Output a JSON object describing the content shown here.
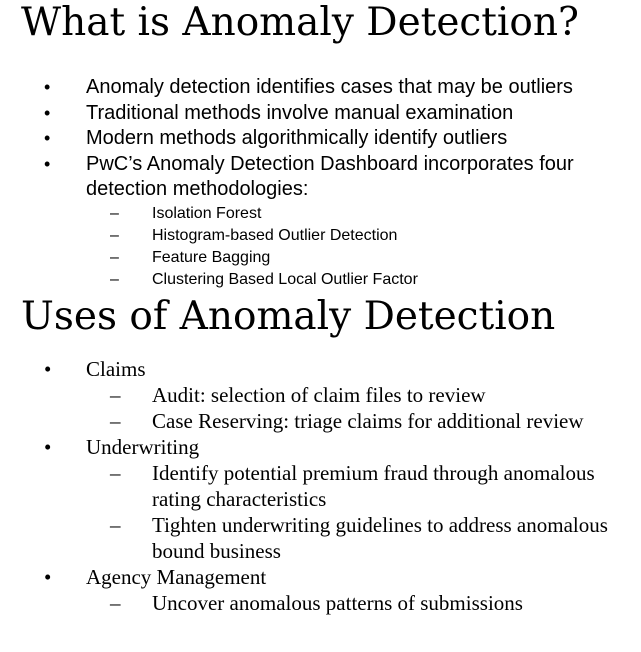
{
  "sections": [
    {
      "title": "What is Anomaly Detection?",
      "items": [
        {
          "text": "Anomaly detection identifies cases that may be outliers"
        },
        {
          "text": "Traditional methods involve manual examination"
        },
        {
          "text": "Modern methods algorithmically identify outliers"
        },
        {
          "text": "PwC’s Anomaly Detection Dashboard incorporates four detection methodologies:",
          "sub": [
            "Isolation Forest",
            "Histogram-based Outlier Detection",
            "Feature Bagging",
            "Clustering Based Local Outlier Factor"
          ]
        }
      ]
    },
    {
      "title": "Uses of Anomaly Detection",
      "items": [
        {
          "text": "Claims",
          "sub": [
            "Audit: selection of claim files to review",
            "Case Reserving: triage claims for additional review"
          ]
        },
        {
          "text": "Underwriting",
          "sub": [
            "Identify potential premium fraud through anomalous rating characteristics",
            "Tighten underwriting guidelines to address anomalous bound business"
          ]
        },
        {
          "text": "Agency Management",
          "sub": [
            "Uncover anomalous patterns of submissions"
          ]
        }
      ]
    }
  ],
  "symbols": {
    "bullet": "•",
    "dash": "–"
  }
}
